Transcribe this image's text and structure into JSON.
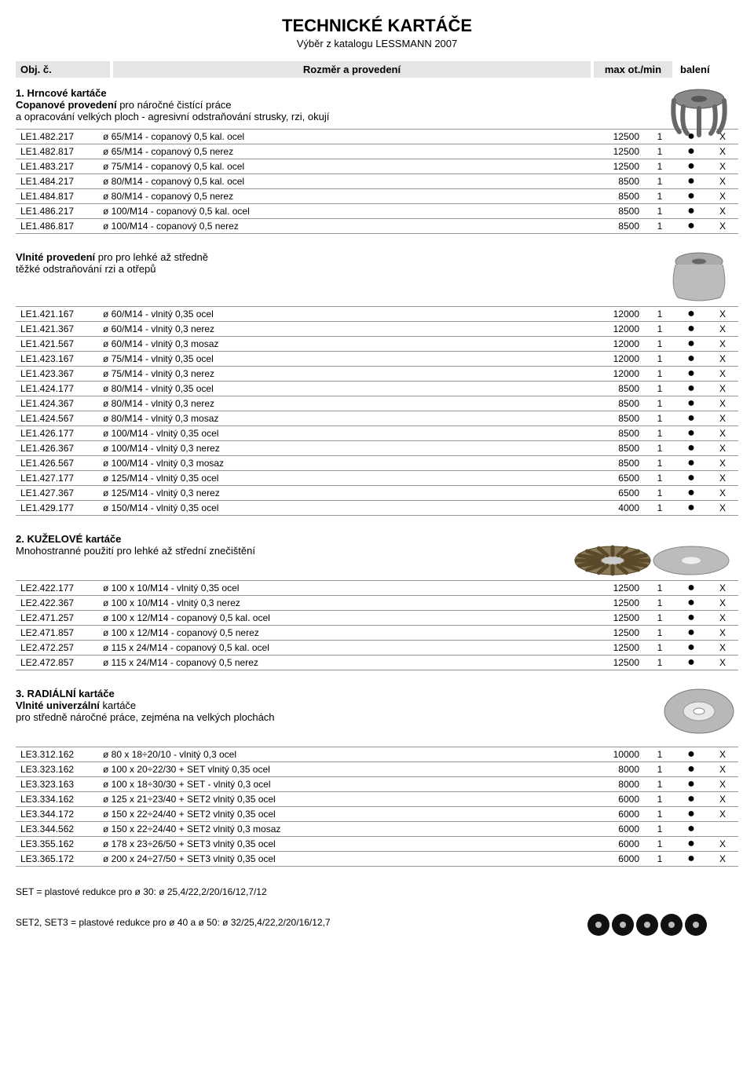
{
  "title": "TECHNICKÉ KARTÁČE",
  "subtitle": "Výběr z katalogu LESSMANN 2007",
  "headers": {
    "c1": "Obj. č.",
    "c2": "Rozměr a provedení",
    "c3": "max ot./min",
    "c4": "balení"
  },
  "sections": [
    {
      "title": "1. Hrncové kartáče",
      "desc_bold": "Copanové provedení",
      "desc_rest": " pro náročné čistící práce",
      "desc_line2": "a opracování velkých ploch - agresivní odstraňování strusky, rzi, okují",
      "img": "cup-knotted",
      "rows": [
        {
          "code": "LE1.482.217",
          "desc": "ø 65/M14 - copanový 0,5 kal. ocel",
          "rpm": "12500",
          "qty": "1",
          "dot": true,
          "x": "X"
        },
        {
          "code": "LE1.482.817",
          "desc": "ø 65/M14 - copanový 0,5 nerez",
          "rpm": "12500",
          "qty": "1",
          "dot": true,
          "x": "X"
        },
        {
          "code": "LE1.483.217",
          "desc": "ø 75/M14 - copanový 0,5 kal. ocel",
          "rpm": "12500",
          "qty": "1",
          "dot": true,
          "x": "X"
        },
        {
          "code": "LE1.484.217",
          "desc": "ø 80/M14 - copanový 0,5 kal. ocel",
          "rpm": "8500",
          "qty": "1",
          "dot": true,
          "x": "X"
        },
        {
          "code": "LE1.484.817",
          "desc": "ø 80/M14 - copanový 0,5 nerez",
          "rpm": "8500",
          "qty": "1",
          "dot": true,
          "x": "X"
        },
        {
          "code": "LE1.486.217",
          "desc": "ø 100/M14 - copanový 0,5 kal. ocel",
          "rpm": "8500",
          "qty": "1",
          "dot": true,
          "x": "X"
        },
        {
          "code": "LE1.486.817",
          "desc": "ø 100/M14 - copanový 0,5 nerez",
          "rpm": "8500",
          "qty": "1",
          "dot": true,
          "x": "X"
        }
      ]
    },
    {
      "title": "",
      "desc_bold": "Vlnité provedení",
      "desc_rest": " pro pro lehké až středně",
      "desc_line2": "těžké odstraňování rzi a otřepů",
      "img": "cup-crimped",
      "rows": [
        {
          "code": "LE1.421.167",
          "desc": "ø 60/M14 - vlnitý 0,35 ocel",
          "rpm": "12000",
          "qty": "1",
          "dot": true,
          "x": "X"
        },
        {
          "code": "LE1.421.367",
          "desc": "ø 60/M14 - vlnitý 0,3 nerez",
          "rpm": "12000",
          "qty": "1",
          "dot": true,
          "x": "X"
        },
        {
          "code": "LE1.421.567",
          "desc": "ø 60/M14 - vlnitý 0,3 mosaz",
          "rpm": "12000",
          "qty": "1",
          "dot": true,
          "x": "X"
        },
        {
          "code": "LE1.423.167",
          "desc": "ø 75/M14 - vlnitý 0,35 ocel",
          "rpm": "12000",
          "qty": "1",
          "dot": true,
          "x": "X"
        },
        {
          "code": "LE1.423.367",
          "desc": "ø 75/M14 - vlnitý 0,3 nerez",
          "rpm": "12000",
          "qty": "1",
          "dot": true,
          "x": "X"
        },
        {
          "code": "LE1.424.177",
          "desc": "ø 80/M14 - vlnitý 0,35 ocel",
          "rpm": "8500",
          "qty": "1",
          "dot": true,
          "x": "X"
        },
        {
          "code": "LE1.424.367",
          "desc": "ø 80/M14 - vlnitý 0,3 nerez",
          "rpm": "8500",
          "qty": "1",
          "dot": true,
          "x": "X"
        },
        {
          "code": "LE1.424.567",
          "desc": "ø 80/M14 - vlnitý 0,3 mosaz",
          "rpm": "8500",
          "qty": "1",
          "dot": true,
          "x": "X"
        },
        {
          "code": "LE1.426.177",
          "desc": "ø 100/M14 - vlnitý 0,35 ocel",
          "rpm": "8500",
          "qty": "1",
          "dot": true,
          "x": "X"
        },
        {
          "code": "LE1.426.367",
          "desc": "ø 100/M14 - vlnitý 0,3 nerez",
          "rpm": "8500",
          "qty": "1",
          "dot": true,
          "x": "X"
        },
        {
          "code": "LE1.426.567",
          "desc": "ø 100/M14 - vlnitý 0,3 mosaz",
          "rpm": "8500",
          "qty": "1",
          "dot": true,
          "x": "X"
        },
        {
          "code": "LE1.427.177",
          "desc": "ø 125/M14 - vlnitý 0,35 ocel",
          "rpm": "6500",
          "qty": "1",
          "dot": true,
          "x": "X"
        },
        {
          "code": "LE1.427.367",
          "desc": "ø 125/M14 - vlnitý 0,3 nerez",
          "rpm": "6500",
          "qty": "1",
          "dot": true,
          "x": "X"
        },
        {
          "code": "LE1.429.177",
          "desc": "ø 150/M14 - vlnitý 0,35 ocel",
          "rpm": "4000",
          "qty": "1",
          "dot": true,
          "x": "X"
        }
      ]
    },
    {
      "title": "2. KUŽELOVÉ kartáče",
      "desc_bold": "",
      "desc_rest": "Mnohostranné použití pro lehké až střední znečištění",
      "desc_line2": "",
      "img": "bevel-pair",
      "rows": [
        {
          "code": "LE2.422.177",
          "desc": "ø 100 x 10/M14 - vlnitý 0,35 ocel",
          "rpm": "12500",
          "qty": "1",
          "dot": true,
          "x": "X"
        },
        {
          "code": "LE2.422.367",
          "desc": "ø 100 x 10/M14 - vlnitý 0,3 nerez",
          "rpm": "12500",
          "qty": "1",
          "dot": true,
          "x": "X"
        },
        {
          "code": "LE2.471.257",
          "desc": "ø 100 x 12/M14 - copanový 0,5 kal. ocel",
          "rpm": "12500",
          "qty": "1",
          "dot": true,
          "x": "X"
        },
        {
          "code": "LE2.471.857",
          "desc": "ø 100 x 12/M14 - copanový 0,5 nerez",
          "rpm": "12500",
          "qty": "1",
          "dot": true,
          "x": "X"
        },
        {
          "code": "LE2.472.257",
          "desc": "ø 115 x 24/M14 - copanový 0,5 kal. ocel",
          "rpm": "12500",
          "qty": "1",
          "dot": true,
          "x": "X"
        },
        {
          "code": "LE2.472.857",
          "desc": "ø 115 x 24/M14 - copanový 0,5 nerez",
          "rpm": "12500",
          "qty": "1",
          "dot": true,
          "x": "X"
        }
      ]
    },
    {
      "title": "3. RADIÁLNÍ kartáče",
      "desc_bold": "Vlnité univerzální",
      "desc_rest": " kartáče",
      "desc_line2": "pro středně náročné práce, zejména na velkých plochách",
      "img": "wheel",
      "rows": [
        {
          "code": "LE3.312.162",
          "desc": "ø  80 x 18÷20/10 - vlnitý 0,3 ocel",
          "rpm": "10000",
          "qty": "1",
          "dot": true,
          "x": "X"
        },
        {
          "code": "LE3.323.162",
          "desc": "ø 100 x 20÷22/30 + SET vlnitý 0,35 ocel",
          "rpm": "8000",
          "qty": "1",
          "dot": true,
          "x": "X"
        },
        {
          "code": "LE3.323.163",
          "desc": "ø 100 x 18÷30/30 + SET - vlnitý 0,3 ocel",
          "rpm": "8000",
          "qty": "1",
          "dot": true,
          "x": "X"
        },
        {
          "code": "LE3.334.162",
          "desc": "ø 125 x 21÷23/40 + SET2 vlnitý 0,35 ocel",
          "rpm": "6000",
          "qty": "1",
          "dot": true,
          "x": "X"
        },
        {
          "code": "LE3.344.172",
          "desc": "ø 150 x 22÷24/40 + SET2 vlnitý 0,35 ocel",
          "rpm": "6000",
          "qty": "1",
          "dot": true,
          "x": "X"
        },
        {
          "code": "LE3.344.562",
          "desc": "ø 150 x 22÷24/40 + SET2 vlnitý 0,3 mosaz",
          "rpm": "6000",
          "qty": "1",
          "dot": true,
          "x": ""
        },
        {
          "code": "LE3.355.162",
          "desc": "ø 178 x 23÷26/50 + SET3 vlnitý 0,35 ocel",
          "rpm": "6000",
          "qty": "1",
          "dot": true,
          "x": "X"
        },
        {
          "code": "LE3.365.172",
          "desc": "ø 200 x 24÷27/50 + SET3 vlnitý 0,35 ocel",
          "rpm": "6000",
          "qty": "1",
          "dot": true,
          "x": "X"
        }
      ]
    }
  ],
  "footnotes": [
    "SET = plastové redukce pro ø 30: ø 25,4/22,2/20/16/12,7/12",
    "SET2, SET3 = plastové redukce pro ø 40 a ø 50: ø 32/25,4/22,2/20/16/12,7"
  ]
}
